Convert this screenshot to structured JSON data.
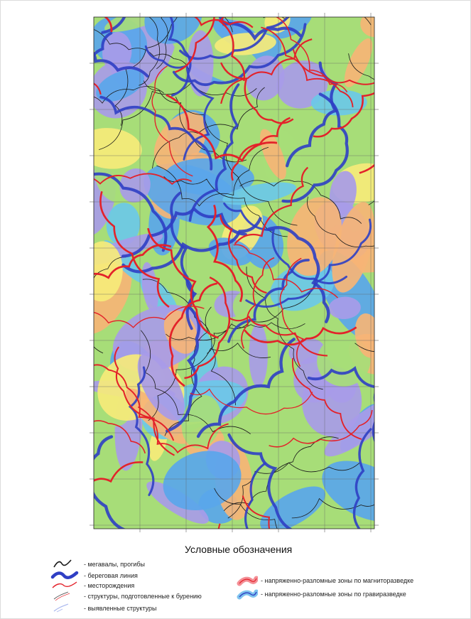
{
  "map": {
    "colors": {
      "purple": "#a89be8",
      "blue": "#5aa6ea",
      "green": "#a7dd78",
      "yellow": "#f6ea7a",
      "orange": "#f6b476",
      "red_line": "#e3222a",
      "blue_line": "#2f3fc4",
      "black_line": "#1a1a1a",
      "cyan": "#6bc8e8"
    }
  },
  "legend": {
    "title": "Условные обозначения",
    "items_left": [
      {
        "label": "- мегавалы, прогибы",
        "icon": "black-wave-line"
      },
      {
        "label": "- береговая линия",
        "icon": "thick-blue-wave-line"
      },
      {
        "label": "- месторождения",
        "icon": "red-wave-line"
      },
      {
        "label": "- структуры, подготовленные к бурению",
        "icon": "thin-double-line"
      },
      {
        "label": "- выявленные структуры",
        "icon": "light-blue-line"
      }
    ],
    "items_right": [
      {
        "label": "- напряженно-разломные зоны по магниторазведке",
        "icon": "red-hatched-band"
      },
      {
        "label": "- напряженно-разломные зоны по гравиразведке",
        "icon": "blue-hatched-band"
      }
    ]
  }
}
